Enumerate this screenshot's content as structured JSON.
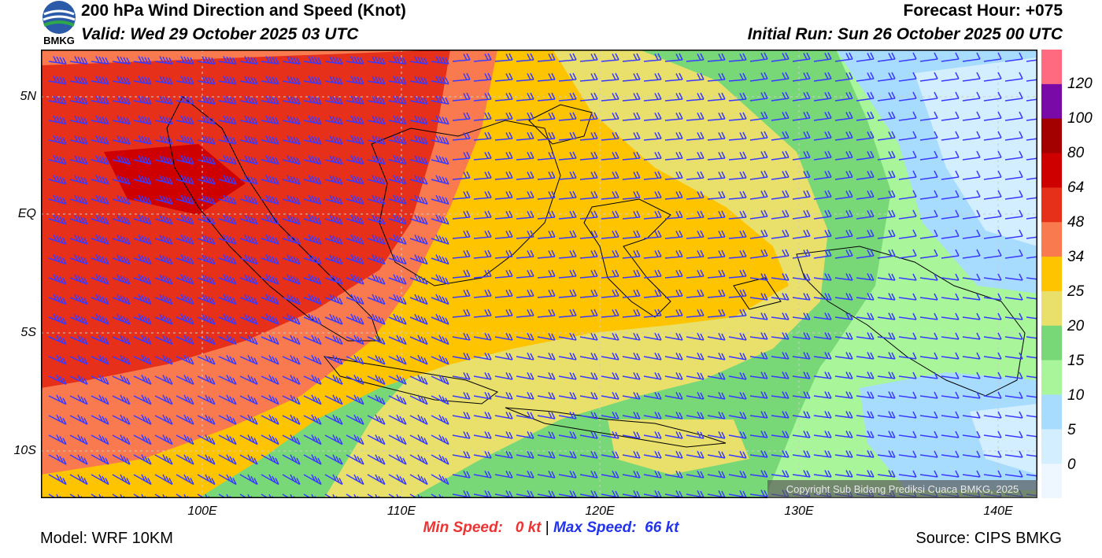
{
  "header": {
    "title": "200 hPa Wind Direction and Speed (Knot)",
    "valid": "Valid: Wed 29 October 2025 03 UTC",
    "forecast_hour": "Forecast Hour: +075",
    "initial_run": "Initial Run: Sun 26 October 2025 00 UTC",
    "logo_text": "BMKG"
  },
  "axes": {
    "lat_labels": [
      "5N",
      "EQ",
      "5S",
      "10S"
    ],
    "lon_labels": [
      "100E",
      "110E",
      "120E",
      "130E",
      "140E"
    ]
  },
  "colorbar": {
    "labels": [
      "120",
      "100",
      "80",
      "64",
      "48",
      "34",
      "25",
      "20",
      "15",
      "10",
      "5",
      "0"
    ],
    "colors": [
      "#ff6a80",
      "#7a0aa8",
      "#a30000",
      "#cf0000",
      "#e6301a",
      "#f97a4e",
      "#ffc400",
      "#e8e06a",
      "#78d878",
      "#a8f59a",
      "#a8dcff",
      "#d3eeff",
      "#eef6ff"
    ]
  },
  "stats": {
    "min_label": "Min Speed:",
    "min_value": "0 kt",
    "separator": "|",
    "max_label": "Max Speed:",
    "max_value": "66 kt",
    "min_color": "#ee3333",
    "max_color": "#2233ee"
  },
  "footer": {
    "model": "Model: WRF 10KM",
    "source": "Source: CIPS BMKG",
    "copyright": "Copyright Sub Bidang Prediksi Cuaca BMKG, 2025"
  },
  "map": {
    "wind_barb_color": "#3a3aff",
    "coastline_color": "#000000",
    "grid_line_color": "#cccccc"
  }
}
